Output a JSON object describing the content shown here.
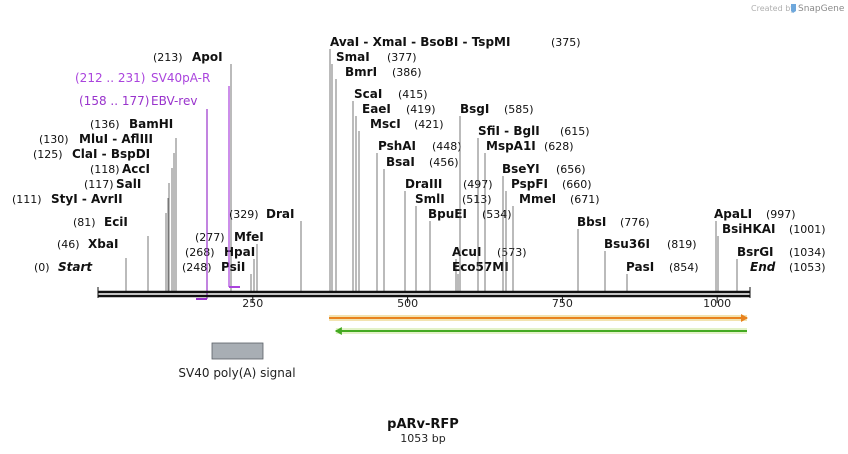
{
  "credit": {
    "created_by": "Created by",
    "brand": "SnapGene"
  },
  "map": {
    "name": "pARv-RFP",
    "length_text": "1053 bp",
    "length": 1053,
    "scale_ticks": [
      {
        "value": 250,
        "label": "250"
      },
      {
        "value": 500,
        "label": "500"
      },
      {
        "value": 750,
        "label": "750"
      },
      {
        "value": 1000,
        "label": "1000"
      }
    ]
  },
  "enzymes": [
    {
      "label": "Start",
      "pos_text": "(0)",
      "bp": 0,
      "italic": true
    },
    {
      "label": "XbaI",
      "pos_text": "(46)",
      "bp": 46
    },
    {
      "label": "EciI",
      "pos_text": "(81)",
      "bp": 81
    },
    {
      "label": "StyI  -  AvrII",
      "pos_text": "(111)",
      "bp": 111
    },
    {
      "label": "SalI",
      "pos_text": "(117)",
      "bp": 117
    },
    {
      "label": "AccI",
      "pos_text": "(118)",
      "bp": 118
    },
    {
      "label": "ClaI  -  BspDI",
      "pos_text": "(125)",
      "bp": 125
    },
    {
      "label": "MluI  -  AflIII",
      "pos_text": "(130)",
      "bp": 130
    },
    {
      "label": "BamHI",
      "pos_text": "(136)",
      "bp": 136
    },
    {
      "label": "ApoI",
      "pos_text": "(213)",
      "bp": 213
    },
    {
      "label": "PsiI",
      "pos_text": "(248)",
      "bp": 248
    },
    {
      "label": "HpaI",
      "pos_text": "(268)",
      "bp": 268
    },
    {
      "label": "MfeI",
      "pos_text": "(277)",
      "bp": 277
    },
    {
      "label": "DraI",
      "pos_text": "(329)",
      "bp": 329,
      "pos_left": true
    },
    {
      "label": "AvaI  -  XmaI  -  BsoBI  -  TspMI",
      "pos_text": "(375)",
      "bp": 375
    },
    {
      "label": "SmaI",
      "pos_text": "(377)",
      "bp": 377
    },
    {
      "label": "BmrI",
      "pos_text": "(386)",
      "bp": 386
    },
    {
      "label": "ScaI",
      "pos_text": "(415)",
      "bp": 415
    },
    {
      "label": "EaeI",
      "pos_text": "(419)",
      "bp": 419
    },
    {
      "label": "MscI",
      "pos_text": "(421)",
      "bp": 421
    },
    {
      "label": "PshAI",
      "pos_text": "(448)",
      "bp": 448
    },
    {
      "label": "BsaI",
      "pos_text": "(456)",
      "bp": 456
    },
    {
      "label": "DraIII",
      "pos_text": "(497)",
      "bp": 497
    },
    {
      "label": "SmlI",
      "pos_text": "(513)",
      "bp": 513
    },
    {
      "label": "BpuEI",
      "pos_text": "(534)",
      "bp": 534
    },
    {
      "label": "AcuI",
      "pos_text": "(573)",
      "bp": 573,
      "pos_right_far": true
    },
    {
      "label": "Eco57MI",
      "pos_text": "",
      "bp": 573
    },
    {
      "label": "BsgI",
      "pos_text": "(585)",
      "bp": 585
    },
    {
      "label": "SfiI  -  BglI",
      "pos_text": "(615)",
      "bp": 615
    },
    {
      "label": "MspA1I",
      "pos_text": "(628)",
      "bp": 628
    },
    {
      "label": "BseYI",
      "pos_text": "(656)",
      "bp": 656
    },
    {
      "label": "PspFI",
      "pos_text": "(660)",
      "bp": 660
    },
    {
      "label": "MmeI",
      "pos_text": "(671)",
      "bp": 671
    },
    {
      "label": "BbsI",
      "pos_text": "(776)",
      "bp": 776
    },
    {
      "label": "Bsu36I",
      "pos_text": "(819)",
      "bp": 819
    },
    {
      "label": "PasI",
      "pos_text": "(854)",
      "bp": 854
    },
    {
      "label": "ApaLI",
      "pos_text": "(997)",
      "bp": 997
    },
    {
      "label": "BsiHKAI",
      "pos_text": "(1001)",
      "bp": 1001
    },
    {
      "label": "BsrGI",
      "pos_text": "(1034)",
      "bp": 1034
    },
    {
      "label": "End",
      "pos_text": "(1053)",
      "bp": 1053,
      "italic": true
    }
  ],
  "primers": [
    {
      "name": "SV40pA-R",
      "range_text": "(212 .. 231)",
      "start": 212,
      "end": 231,
      "color": "#aa44dd"
    },
    {
      "name": "EBV-rev",
      "range_text": "(158 .. 177)",
      "start": 158,
      "end": 177,
      "color": "#9933cc"
    }
  ],
  "features": [
    {
      "name": "SV40 poly(A) signal",
      "start": 190,
      "end": 272,
      "color": "#a8aeb4"
    }
  ],
  "orfs": [
    {
      "direction": "forward",
      "start": 374,
      "end": 1053,
      "color": "#e8821e",
      "fill": "#f2e3b0"
    },
    {
      "direction": "reverse",
      "start": 385,
      "end": 1053,
      "color": "#44aa22",
      "fill": "#e3f2c8"
    }
  ]
}
